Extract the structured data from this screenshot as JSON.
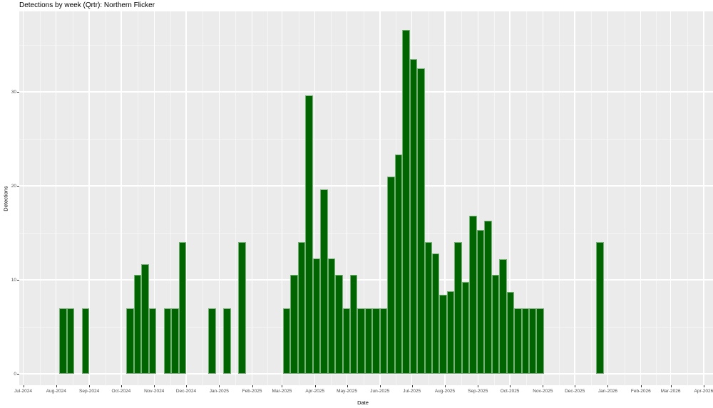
{
  "title": "Detections by week (Qrtr): Northern Flicker",
  "colors": {
    "bar_fill": "#006400",
    "bar_edge": "#8cbe8c",
    "panel_background": "#ebebeb",
    "gridline": "#ffffff",
    "tick_label_text": "#4d4d4d",
    "title_text": "#000000"
  },
  "chart_data": {
    "type": "bar",
    "title": "Detections by week (Qrtr): Northern Flicker",
    "xlabel": "Date",
    "ylabel": "Detections",
    "bin": "week",
    "legend": "none",
    "grid": "white major and minor gridlines on grey panel",
    "x_tick_labels": [
      "Jul-2024",
      "Aug-2024",
      "Sep-2024",
      "Oct-2024",
      "Nov-2024",
      "Dec-2024",
      "Jan-2025",
      "Feb-2025",
      "Mar-2025",
      "Apr-2025",
      "May-2025",
      "Jun-2025",
      "Jul-2025",
      "Aug-2025",
      "Sep-2025",
      "Oct-2025",
      "Nov-2025",
      "Dec-2025",
      "Jan-2026",
      "Feb-2026",
      "Mar-2026",
      "Apr-2026"
    ],
    "y_tick_labels": [
      "0",
      "10",
      "20",
      "30"
    ],
    "y_tick_values": [
      0,
      10,
      20,
      30
    ],
    "y_minor_tick_values": [
      5,
      15,
      25,
      35
    ],
    "ylim": [
      0,
      38.5
    ],
    "points": [
      {
        "week": "2024-08-04",
        "value": 7
      },
      {
        "week": "2024-08-11",
        "value": 7
      },
      {
        "week": "2024-08-25",
        "value": 7
      },
      {
        "week": "2024-10-06",
        "value": 7
      },
      {
        "week": "2024-10-13",
        "value": 10.5
      },
      {
        "week": "2024-10-20",
        "value": 11.7
      },
      {
        "week": "2024-10-27",
        "value": 7
      },
      {
        "week": "2024-11-10",
        "value": 7
      },
      {
        "week": "2024-11-17",
        "value": 7
      },
      {
        "week": "2024-11-24",
        "value": 14
      },
      {
        "week": "2024-12-22",
        "value": 7
      },
      {
        "week": "2025-01-05",
        "value": 7
      },
      {
        "week": "2025-01-19",
        "value": 14
      },
      {
        "week": "2025-03-02",
        "value": 7
      },
      {
        "week": "2025-03-09",
        "value": 10.5
      },
      {
        "week": "2025-03-16",
        "value": 14
      },
      {
        "week": "2025-03-23",
        "value": 29.6
      },
      {
        "week": "2025-03-30",
        "value": 12.3
      },
      {
        "week": "2025-04-06",
        "value": 19.6
      },
      {
        "week": "2025-04-13",
        "value": 12.3
      },
      {
        "week": "2025-04-20",
        "value": 10.5
      },
      {
        "week": "2025-04-27",
        "value": 7
      },
      {
        "week": "2025-05-04",
        "value": 10.5
      },
      {
        "week": "2025-05-11",
        "value": 7
      },
      {
        "week": "2025-05-18",
        "value": 7
      },
      {
        "week": "2025-05-25",
        "value": 7
      },
      {
        "week": "2025-06-01",
        "value": 7
      },
      {
        "week": "2025-06-08",
        "value": 21
      },
      {
        "week": "2025-06-15",
        "value": 23.3
      },
      {
        "week": "2025-06-22",
        "value": 36.6
      },
      {
        "week": "2025-06-29",
        "value": 33.5
      },
      {
        "week": "2025-07-06",
        "value": 32.5
      },
      {
        "week": "2025-07-13",
        "value": 14
      },
      {
        "week": "2025-07-20",
        "value": 12.8
      },
      {
        "week": "2025-07-27",
        "value": 8.4
      },
      {
        "week": "2025-08-03",
        "value": 8.8
      },
      {
        "week": "2025-08-10",
        "value": 14
      },
      {
        "week": "2025-08-17",
        "value": 9.8
      },
      {
        "week": "2025-08-24",
        "value": 16.8
      },
      {
        "week": "2025-08-31",
        "value": 15.3
      },
      {
        "week": "2025-09-07",
        "value": 16.3
      },
      {
        "week": "2025-09-14",
        "value": 10.5
      },
      {
        "week": "2025-09-21",
        "value": 12.2
      },
      {
        "week": "2025-09-28",
        "value": 8.7
      },
      {
        "week": "2025-10-05",
        "value": 7
      },
      {
        "week": "2025-10-12",
        "value": 7
      },
      {
        "week": "2025-10-19",
        "value": 7
      },
      {
        "week": "2025-10-26",
        "value": 7
      },
      {
        "week": "2025-12-21",
        "value": 14
      }
    ]
  }
}
